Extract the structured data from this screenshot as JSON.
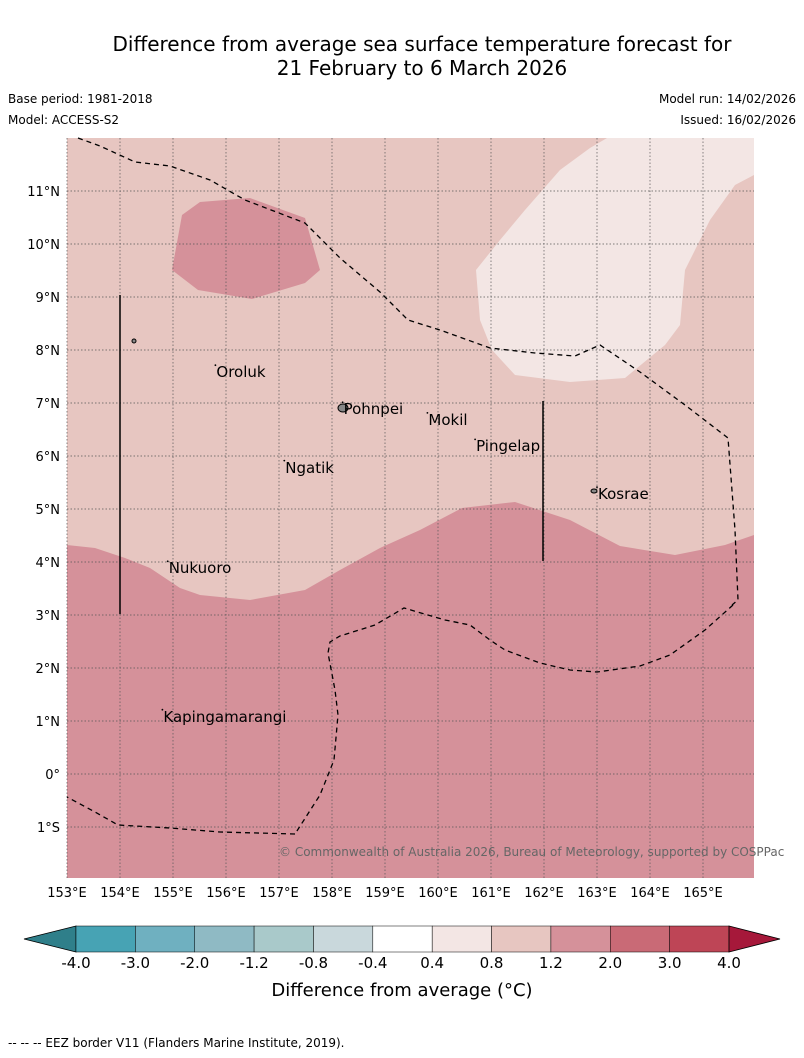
{
  "header": {
    "title_line1": "Difference from average sea surface temperature forecast for",
    "title_line2": "21 February to 6 March 2026",
    "base_period": "Base period: 1981-2018",
    "model": "Model: ACCESS-S2",
    "model_run": "Model run: 14/02/2026",
    "issued": "Issued: 16/02/2026"
  },
  "map": {
    "lon_range": [
      153,
      166
    ],
    "lat_range": [
      -2,
      12
    ],
    "lon_ticks": [
      "153°E",
      "154°E",
      "155°E",
      "156°E",
      "157°E",
      "158°E",
      "159°E",
      "160°E",
      "161°E",
      "162°E",
      "163°E",
      "164°E",
      "165°E"
    ],
    "lat_ticks": [
      "11°N",
      "10°N",
      "9°N",
      "8°N",
      "7°N",
      "6°N",
      "5°N",
      "4°N",
      "3°N",
      "2°N",
      "1°N",
      "0°",
      "1°S"
    ],
    "places": [
      {
        "name": "Oroluk",
        "lon": 155.8,
        "lat": 7.6
      },
      {
        "name": "Pohnpei",
        "lon": 158.2,
        "lat": 6.9
      },
      {
        "name": "Mokil",
        "lon": 159.8,
        "lat": 6.7
      },
      {
        "name": "Pingelap",
        "lon": 160.7,
        "lat": 6.2
      },
      {
        "name": "Ngatik",
        "lon": 157.1,
        "lat": 5.8
      },
      {
        "name": "Kosrae",
        "lon": 163.0,
        "lat": 5.3
      },
      {
        "name": "Nukuoro",
        "lon": 154.9,
        "lat": 3.9
      },
      {
        "name": "Kapingamarangi",
        "lon": 154.8,
        "lat": 1.1
      }
    ],
    "colors": {
      "background_field": "#e7c6c1",
      "warm_field": "#d5919a",
      "cool_field": "#f3e6e4"
    },
    "copyright": "© Commonwealth of Australia 2026, Bureau of Meteorology, supported by COSPPac"
  },
  "colorbar": {
    "labels": [
      "-4.0",
      "-3.0",
      "-2.0",
      "-1.2",
      "-0.8",
      "-0.4",
      "0.4",
      "0.8",
      "1.2",
      "2.0",
      "3.0",
      "4.0"
    ],
    "colors": [
      "#2f7f8a",
      "#47a3b4",
      "#6fb0c0",
      "#8fbac4",
      "#a9c9ca",
      "#c9d8dc",
      "#ffffff",
      "#f3e6e4",
      "#e7c6c1",
      "#d5919a",
      "#c96a76",
      "#be4556",
      "#a6183a"
    ],
    "title": "Difference from average (°C)"
  },
  "footnote": "--  --  -- EEZ border V11 (Flanders Marine Institute, 2019)."
}
